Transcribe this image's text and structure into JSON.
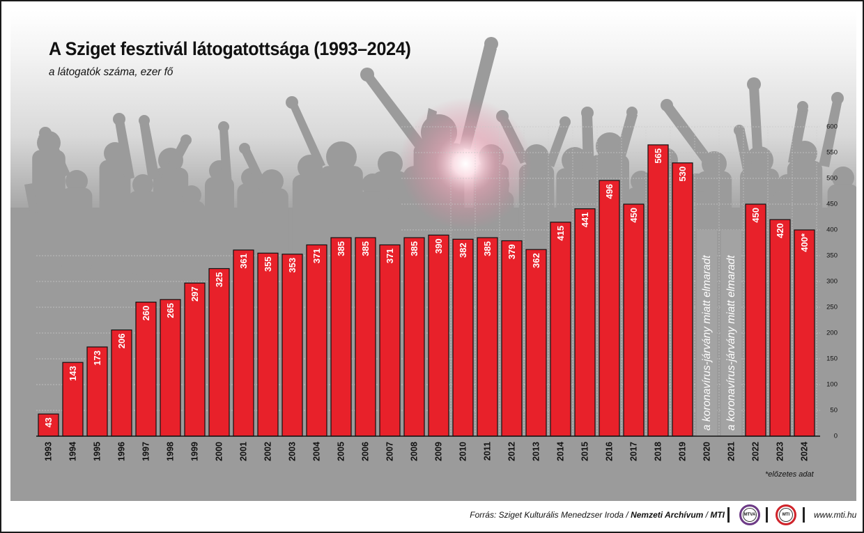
{
  "title": "A Sziget fesztivál látogatottsága (1993–2024)",
  "subtitle": "a látogatók száma, ezer fő",
  "footnote": "*előzetes adat",
  "footer": {
    "source_prefix": "Forrás: Sziget Kulturális Menedzser Iroda / ",
    "source_bold1": "Nemzeti Archívum",
    "source_mid": " / ",
    "source_bold2": "MTI",
    "logo_mtva": "MTVA",
    "logo_mti": "MTI",
    "site": "www.mti.hu"
  },
  "colors": {
    "bar": "#e8212a",
    "silhouette": "#9b9b9b",
    "text": "#111111"
  },
  "chart_data": {
    "type": "bar",
    "title": "A Sziget fesztivál látogatottsága (1993–2024)",
    "subtitle": "a látogatók száma, ezer fő",
    "categories": [
      "1993",
      "1994",
      "1995",
      "1996",
      "1997",
      "1998",
      "1999",
      "2000",
      "2001",
      "2002",
      "2003",
      "2004",
      "2005",
      "2006",
      "2007",
      "2008",
      "2009",
      "2010",
      "2011",
      "2012",
      "2013",
      "2014",
      "2015",
      "2016",
      "2017",
      "2018",
      "2019",
      "2020",
      "2021",
      "2022",
      "2023",
      "2024"
    ],
    "values": [
      43,
      143,
      173,
      206,
      260,
      265,
      297,
      325,
      361,
      355,
      353,
      371,
      385,
      385,
      371,
      385,
      390,
      382,
      385,
      379,
      362,
      415,
      441,
      496,
      450,
      565,
      530,
      null,
      null,
      450,
      420,
      400
    ],
    "value_labels": [
      "43",
      "143",
      "173",
      "206",
      "260",
      "265",
      "297",
      "325",
      "361",
      "355",
      "353",
      "371",
      "385",
      "385",
      "371",
      "385",
      "390",
      "382",
      "385",
      "379",
      "362",
      "415",
      "441",
      "496",
      "450",
      "565",
      "530",
      "",
      "",
      "450",
      "420",
      "400*"
    ],
    "cancelled_note": "a koronavírus-járvány miatt elmaradt",
    "cancelled_years": [
      "2020",
      "2021"
    ],
    "ylim": [
      0,
      600
    ],
    "yticks": [
      0,
      50,
      100,
      150,
      200,
      250,
      300,
      350,
      400,
      450,
      500,
      550,
      600
    ],
    "y_axis_side": "right",
    "grid": true,
    "xlabel": "",
    "ylabel": ""
  }
}
